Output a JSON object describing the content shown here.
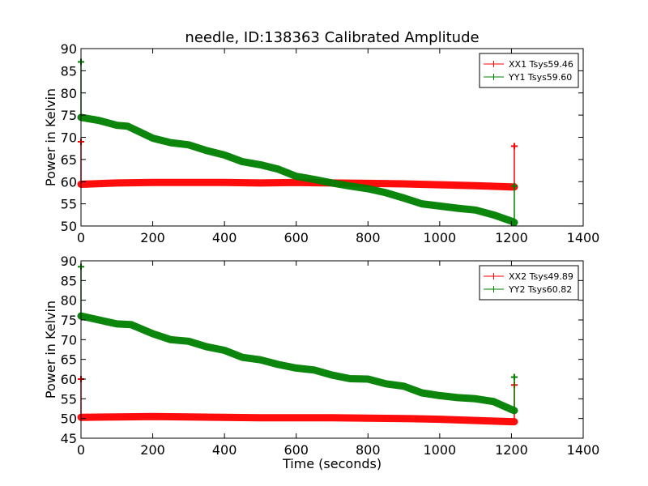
{
  "figure": {
    "title": "needle, ID:138363 Calibrated Amplitude",
    "xlabel": "Time (seconds)"
  },
  "chart_data": [
    {
      "type": "line",
      "title": "needle, ID:138363 Calibrated Amplitude",
      "xlabel": "",
      "ylabel": "Power in Kelvin",
      "xlim": [
        0,
        1400
      ],
      "ylim": [
        50,
        90
      ],
      "xticks": [
        "0",
        "200",
        "400",
        "600",
        "800",
        "1000",
        "1200",
        "1400"
      ],
      "yticks": [
        "50",
        "55",
        "60",
        "65",
        "70",
        "75",
        "80",
        "85",
        "90"
      ],
      "grid": false,
      "legend_position": "top-right",
      "series": [
        {
          "name": "XX1 Tsys59.46",
          "color": "#ff0000",
          "marker": "plus",
          "x": [
            0,
            100,
            200,
            300,
            400,
            500,
            600,
            700,
            800,
            900,
            1000,
            1100,
            1200,
            1208
          ],
          "y": [
            59.4,
            59.7,
            59.8,
            59.8,
            59.8,
            59.7,
            59.8,
            59.7,
            59.6,
            59.5,
            59.3,
            59.1,
            58.8,
            58.8
          ],
          "spikes": [
            {
              "x": 0,
              "y_top": 69.0,
              "y_bottom": 59.5
            },
            {
              "x": 1208,
              "y_top": 68.0,
              "y_bottom": 58.8
            }
          ]
        },
        {
          "name": "YY1 Tsys59.60",
          "color": "#008000",
          "marker": "plus",
          "x": [
            0,
            50,
            100,
            130,
            200,
            250,
            300,
            350,
            400,
            450,
            500,
            550,
            600,
            650,
            700,
            750,
            800,
            850,
            900,
            950,
            1000,
            1050,
            1100,
            1150,
            1200,
            1208
          ],
          "y": [
            74.5,
            73.8,
            72.7,
            72.5,
            69.8,
            68.8,
            68.3,
            67.0,
            66.0,
            64.5,
            63.8,
            62.8,
            61.2,
            60.5,
            59.7,
            59.0,
            58.4,
            57.5,
            56.3,
            55.0,
            54.5,
            54.0,
            53.6,
            52.5,
            51.1,
            50.8
          ],
          "spikes": [
            {
              "x": 0,
              "y_top": 87.0,
              "y_bottom": 74.5
            },
            {
              "x": 1208,
              "y_top": 59.0,
              "y_bottom": 50.8
            }
          ]
        }
      ]
    },
    {
      "type": "line",
      "title": "",
      "xlabel": "Time (seconds)",
      "ylabel": "Power in Kelvin",
      "xlim": [
        0,
        1400
      ],
      "ylim": [
        45,
        90
      ],
      "xticks": [
        "0",
        "200",
        "400",
        "600",
        "800",
        "1000",
        "1200",
        "1400"
      ],
      "yticks": [
        "45",
        "50",
        "55",
        "60",
        "65",
        "70",
        "75",
        "80",
        "85",
        "90"
      ],
      "grid": false,
      "legend_position": "top-right",
      "series": [
        {
          "name": "XX2 Tsys49.89",
          "color": "#ff0000",
          "marker": "plus",
          "x": [
            0,
            100,
            200,
            300,
            400,
            500,
            600,
            700,
            800,
            900,
            1000,
            1100,
            1200,
            1208
          ],
          "y": [
            50.3,
            50.4,
            50.5,
            50.4,
            50.3,
            50.2,
            50.2,
            50.2,
            50.1,
            50.0,
            49.8,
            49.5,
            49.2,
            49.2
          ],
          "spikes": [
            {
              "x": 0,
              "y_top": 60.0,
              "y_bottom": 50.3
            },
            {
              "x": 1208,
              "y_top": 58.5,
              "y_bottom": 49.2
            }
          ]
        },
        {
          "name": "YY2 Tsys60.82",
          "color": "#008000",
          "marker": "plus",
          "x": [
            0,
            50,
            100,
            140,
            200,
            250,
            300,
            350,
            400,
            450,
            500,
            550,
            600,
            650,
            700,
            750,
            800,
            850,
            900,
            950,
            1000,
            1050,
            1100,
            1150,
            1200,
            1208
          ],
          "y": [
            76.0,
            75.0,
            74.0,
            73.8,
            71.5,
            70.0,
            69.6,
            68.2,
            67.3,
            65.5,
            64.9,
            63.7,
            62.8,
            62.3,
            61.0,
            60.1,
            60.0,
            58.8,
            58.2,
            56.5,
            55.8,
            55.3,
            55.0,
            54.3,
            52.3,
            52.0
          ],
          "spikes": [
            {
              "x": 0,
              "y_top": 88.5,
              "y_bottom": 76.0
            },
            {
              "x": 1208,
              "y_top": 60.5,
              "y_bottom": 52.0
            }
          ]
        }
      ]
    }
  ]
}
